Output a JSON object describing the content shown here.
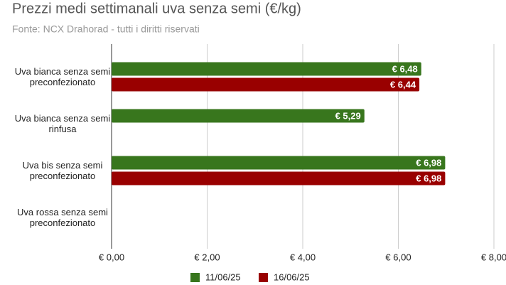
{
  "chart_data": {
    "type": "bar",
    "orientation": "horizontal",
    "title": "Prezzi medi settimanali uva senza semi (€/kg)",
    "subtitle": "Fonte: NCX Drahorad - tutti i diritti riservati",
    "categories": [
      "Uva bianca senza semi preconfezionato",
      "Uva bianca senza semi rinfusa",
      "Uva bis senza semi preconfezionato",
      "Uva rossa senza semi preconfezionato"
    ],
    "series": [
      {
        "name": "11/06/25",
        "color": "#38761d",
        "values": [
          6.48,
          5.29,
          6.98,
          null
        ],
        "value_labels": [
          "€ 6,48",
          "€ 5,29",
          "€ 6,98",
          null
        ]
      },
      {
        "name": "16/06/25",
        "color": "#990000",
        "values": [
          6.44,
          null,
          6.98,
          null
        ],
        "value_labels": [
          "€ 6,44",
          null,
          "€ 6,98",
          null
        ]
      }
    ],
    "xlim": [
      0,
      8
    ],
    "xticks": [
      {
        "value": 0,
        "label": "€ 0,00"
      },
      {
        "value": 2,
        "label": "€ 2,00"
      },
      {
        "value": 4,
        "label": "€ 4,00"
      },
      {
        "value": 6,
        "label": "€ 6,00"
      },
      {
        "value": 8,
        "label": "€ 8,00"
      }
    ],
    "grid": true,
    "legend": "bottom"
  }
}
